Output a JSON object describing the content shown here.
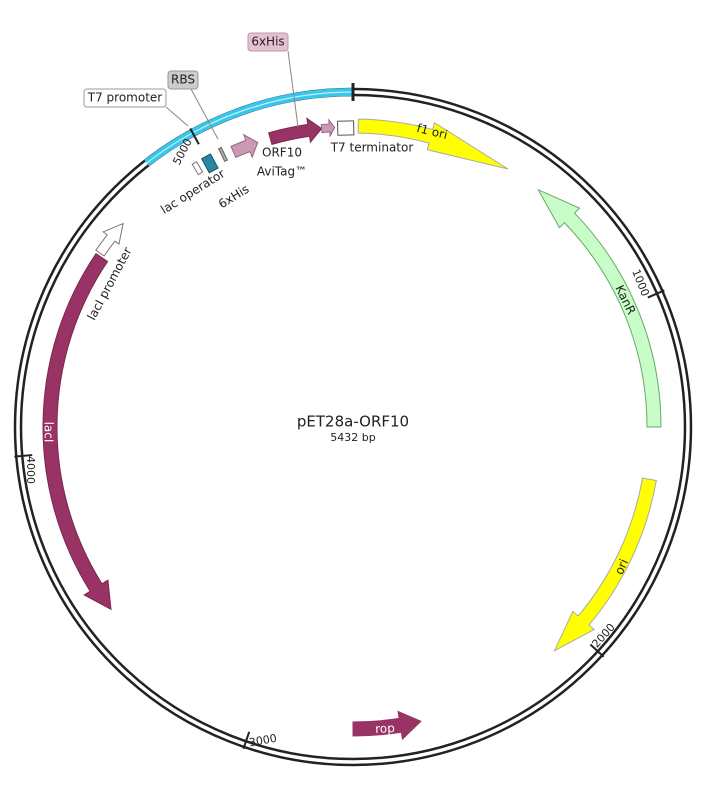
{
  "plasmid": {
    "name": "pET28a-ORF10",
    "length": "5432 bp"
  },
  "features": [
    {
      "label": "T7 promoter"
    },
    {
      "label": "RBS"
    },
    {
      "label": "6xHis"
    },
    {
      "label": "lac operator"
    },
    {
      "label": "6xHis"
    },
    {
      "label": "ORF10"
    },
    {
      "label": "AviTag™"
    },
    {
      "label": "T7 terminator"
    },
    {
      "label": "f1 ori"
    },
    {
      "label": "KanR"
    },
    {
      "label": "ori"
    },
    {
      "label": "rop"
    },
    {
      "label": "lacI"
    },
    {
      "label": "lacI promoter"
    }
  ],
  "ticks": [
    "1000",
    "2000",
    "3000",
    "4000",
    "5000"
  ]
}
